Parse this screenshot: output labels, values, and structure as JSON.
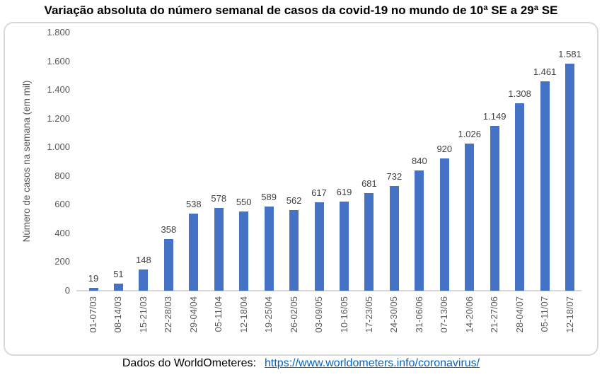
{
  "title": "Variação absoluta do número semanal de casos da covid-19 no mundo de 10ª SE a 29ª SE",
  "chart_data": {
    "type": "bar",
    "title": "Variação absoluta do número semanal de casos da covid-19 no mundo de 10ª SE a 29ª SE",
    "xlabel": "",
    "ylabel": "Número de casos na semana (em mil)",
    "categories": [
      "01-07/03",
      "08-14/03",
      "15-21/03",
      "22-28/03",
      "29-04/04",
      "05-11/04",
      "12-18/04",
      "19-25/04",
      "26-02/05",
      "03-09/05",
      "10-16/05",
      "17-23/05",
      "24-30/05",
      "31-06/06",
      "07-13/06",
      "14-20/06",
      "21-27/06",
      "28-04/07",
      "05-11/07",
      "12-18/07"
    ],
    "values": [
      19,
      51,
      148,
      358,
      538,
      578,
      550,
      589,
      562,
      617,
      619,
      681,
      732,
      840,
      920,
      1026,
      1149,
      1308,
      1461,
      1581
    ],
    "value_labels": [
      "19",
      "51",
      "148",
      "358",
      "538",
      "578",
      "550",
      "589",
      "562",
      "617",
      "619",
      "681",
      "732",
      "840",
      "920",
      "1.026",
      "1.149",
      "1.308",
      "1.461",
      "1.581"
    ],
    "ylim": [
      0,
      1800
    ],
    "ytick_step": 200,
    "ytick_labels": [
      "0",
      "200",
      "400",
      "600",
      "800",
      "1.000",
      "1.200",
      "1.400",
      "1.600",
      "1.800"
    ],
    "grid": false,
    "legend": "none",
    "bar_color": "#4472C4"
  },
  "footer": {
    "label": "Dados do WorldOmeteres:",
    "link": "https://www.worldometers.info/coronavirus/"
  },
  "colors": {
    "bar": "#4472C4",
    "axis_line": "#D9D9D9",
    "box_border": "#D9D9D9",
    "tick_text": "#595959",
    "data_label": "#404040",
    "title_text": "#000000",
    "footer_text": "#000000",
    "link": "#0563C1"
  }
}
